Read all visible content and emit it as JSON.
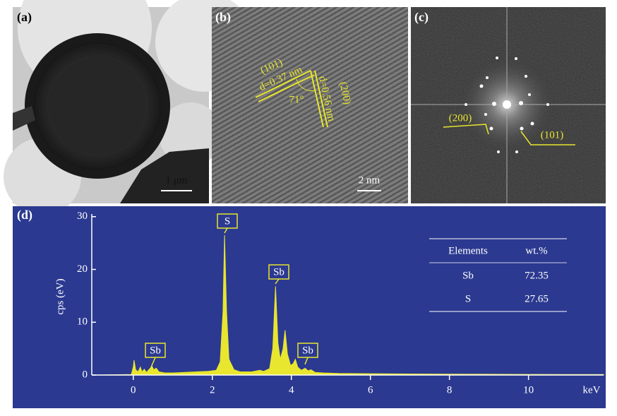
{
  "panels": {
    "a": {
      "label": "(a)",
      "scale_bar": "1 μm"
    },
    "b": {
      "label": "(b)",
      "plane_1": "(101)",
      "d_1": "d=0.37 nm",
      "angle": "71°",
      "d_2": "d=0.56 nm",
      "plane_2": "(200)",
      "scale_bar": "2 nm"
    },
    "c": {
      "label": "(c)",
      "spot_1": "(200)",
      "spot_2": "(101)"
    }
  },
  "chart_data": {
    "type": "area",
    "label": "(d)",
    "y_label": "cps (eV)",
    "x_label": "keV",
    "color": "#e8e62e",
    "x": [
      -1.0,
      -0.05,
      0.0,
      0.02,
      0.06,
      0.12,
      0.18,
      0.22,
      0.28,
      0.33,
      0.42,
      0.47,
      0.52,
      0.58,
      0.65,
      0.8,
      1.0,
      1.3,
      1.6,
      1.9,
      2.1,
      2.2,
      2.27,
      2.31,
      2.36,
      2.42,
      2.47,
      2.55,
      2.7,
      3.0,
      3.2,
      3.3,
      3.45,
      3.53,
      3.6,
      3.66,
      3.72,
      3.79,
      3.84,
      3.9,
      3.98,
      4.05,
      4.1,
      4.16,
      4.25,
      4.35,
      4.42,
      4.5,
      4.6,
      4.8,
      5.2,
      6,
      7,
      8,
      9,
      10,
      11,
      11.9
    ],
    "values": [
      0,
      0.1,
      1.5,
      2.8,
      1.0,
      0.6,
      1.5,
      0.6,
      1.1,
      0.5,
      1.2,
      1.7,
      1.0,
      1.3,
      0.6,
      0.4,
      0.4,
      0.5,
      0.6,
      0.7,
      0.9,
      2.5,
      12,
      26.5,
      12,
      3,
      2.2,
      1,
      0.6,
      0.6,
      0.9,
      0.7,
      1.2,
      5,
      16.8,
      6,
      3,
      5,
      8.5,
      4,
      1.8,
      2.2,
      3,
      1.5,
      0.9,
      1.3,
      0.8,
      1.0,
      0.5,
      0.4,
      0.3,
      0.25,
      0.2,
      0.18,
      0.15,
      0.12,
      0.1,
      0.1
    ],
    "xlim": [
      -1.05,
      11.9
    ],
    "ylim": [
      0,
      30.5
    ],
    "xticks": [
      0,
      2,
      4,
      6,
      8,
      10
    ],
    "yticks": [
      0,
      10,
      20,
      30
    ],
    "annotations": [
      "Sb",
      "S",
      "Sb",
      "Sb"
    ],
    "table": {
      "header": [
        "Elements",
        "wt.%"
      ],
      "rows": [
        [
          "Sb",
          72.35
        ],
        [
          "S",
          27.65
        ]
      ]
    }
  }
}
